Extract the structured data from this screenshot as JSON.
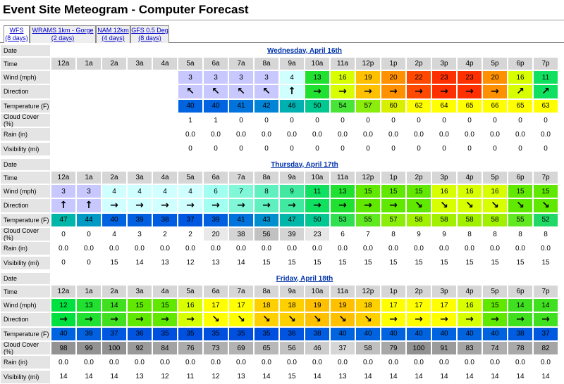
{
  "title": "Event Site Meteogram - Computer Forecast",
  "tabs": [
    {
      "name": "WFS",
      "days": "(8 days)"
    },
    {
      "name": "WRAMS 1km - Gorge",
      "days": "(2 days)"
    },
    {
      "name": "NAM 12km",
      "days": "(4 days)"
    },
    {
      "name": "GFS 0.5 Deg",
      "days": "(8 days)"
    }
  ],
  "row_labels": {
    "date": "Date",
    "time": "Time",
    "wind": "Wind (mph)",
    "direction": "Direction",
    "temperature": "Temperature (F)",
    "cloud": "Cloud Cover (%)",
    "rain": "Rain (in)",
    "visibility": "Visibility (mi)"
  },
  "hours": [
    "12a",
    "1a",
    "2a",
    "3a",
    "4a",
    "5a",
    "6a",
    "7a",
    "8a",
    "9a",
    "10a",
    "11a",
    "12p",
    "1p",
    "2p",
    "3p",
    "4p",
    "5p",
    "6p",
    "7p"
  ],
  "days": [
    {
      "date": "Wednesday, April 16th",
      "wind": [
        null,
        null,
        null,
        null,
        null,
        3,
        3,
        3,
        3,
        4,
        13,
        16,
        19,
        20,
        22,
        23,
        23,
        20,
        16,
        11
      ],
      "direction": [
        null,
        null,
        null,
        null,
        null,
        "↖",
        "↖",
        "↖",
        "↖",
        "↑",
        "→",
        "→",
        "→",
        "→",
        "→",
        "→",
        "→",
        "→",
        "↗",
        "↗"
      ],
      "temperature": [
        null,
        null,
        null,
        null,
        null,
        40,
        40,
        41,
        42,
        46,
        50,
        54,
        57,
        60,
        62,
        64,
        65,
        66,
        65,
        63
      ],
      "cloud": [
        null,
        null,
        null,
        null,
        null,
        1,
        1,
        0,
        0,
        0,
        0,
        0,
        0,
        0,
        0,
        0,
        0,
        0,
        0,
        0
      ],
      "rain": [
        null,
        null,
        null,
        null,
        null,
        "0.0",
        "0.0",
        "0.0",
        "0.0",
        "0.0",
        "0.0",
        "0.0",
        "0.0",
        "0.0",
        "0.0",
        "0.0",
        "0.0",
        "0.0",
        "0.0",
        "0.0"
      ],
      "visibility": [
        null,
        null,
        null,
        null,
        null,
        0,
        0,
        0,
        0,
        0,
        0,
        0,
        0,
        0,
        0,
        0,
        0,
        0,
        0,
        0
      ]
    },
    {
      "date": "Thursday, April 17th",
      "wind": [
        3,
        3,
        4,
        4,
        4,
        4,
        6,
        7,
        8,
        9,
        11,
        13,
        15,
        15,
        15,
        16,
        16,
        16,
        15,
        15
      ],
      "direction": [
        "↑",
        "↑",
        "→",
        "→",
        "→",
        "→",
        "→",
        "→",
        "→",
        "→",
        "→",
        "→",
        "→",
        "→",
        "↘",
        "↘",
        "↘",
        "↘",
        "↘",
        "↘"
      ],
      "temperature": [
        47,
        44,
        40,
        39,
        38,
        37,
        39,
        41,
        43,
        47,
        50,
        53,
        55,
        57,
        58,
        58,
        58,
        58,
        55,
        52
      ],
      "cloud": [
        0,
        0,
        4,
        3,
        2,
        2,
        20,
        38,
        56,
        39,
        23,
        6,
        7,
        8,
        9,
        9,
        8,
        8,
        8,
        8
      ],
      "rain": [
        "0.0",
        "0.0",
        "0.0",
        "0.0",
        "0.0",
        "0.0",
        "0.0",
        "0.0",
        "0.0",
        "0.0",
        "0.0",
        "0.0",
        "0.0",
        "0.0",
        "0.0",
        "0.0",
        "0.0",
        "0.0",
        "0.0",
        "0.0"
      ],
      "visibility": [
        0,
        0,
        15,
        14,
        13,
        12,
        13,
        14,
        15,
        15,
        15,
        15,
        15,
        15,
        15,
        15,
        15,
        15,
        15,
        15
      ]
    },
    {
      "date": "Friday, April 18th",
      "wind": [
        12,
        13,
        14,
        15,
        15,
        16,
        17,
        17,
        18,
        18,
        19,
        19,
        18,
        17,
        17,
        17,
        16,
        15,
        14,
        14
      ],
      "direction": [
        "→",
        "→",
        "→",
        "→",
        "→",
        "→",
        "↘",
        "↘",
        "↘",
        "↘",
        "↘",
        "↘",
        "↘",
        "→",
        "→",
        "→",
        "→",
        "→",
        "→",
        "→"
      ],
      "temperature": [
        40,
        39,
        37,
        36,
        35,
        35,
        35,
        35,
        35,
        36,
        38,
        40,
        40,
        40,
        40,
        40,
        40,
        40,
        38,
        37
      ],
      "cloud": [
        98,
        99,
        100,
        92,
        84,
        76,
        73,
        69,
        65,
        56,
        46,
        37,
        58,
        79,
        100,
        91,
        83,
        74,
        78,
        82
      ],
      "rain": [
        "0.0",
        "0.0",
        "0.0",
        "0.0",
        "0.0",
        "0.0",
        "0.0",
        "0.0",
        "0.0",
        "0.0",
        "0.0",
        "0.0",
        "0.0",
        "0.0",
        "0.0",
        "0.0",
        "0.0",
        "0.0",
        "0.0",
        "0.0"
      ],
      "visibility": [
        14,
        14,
        14,
        13,
        12,
        11,
        12,
        13,
        14,
        15,
        14,
        13,
        14,
        14,
        14,
        14,
        14,
        14,
        14,
        14
      ]
    }
  ]
}
